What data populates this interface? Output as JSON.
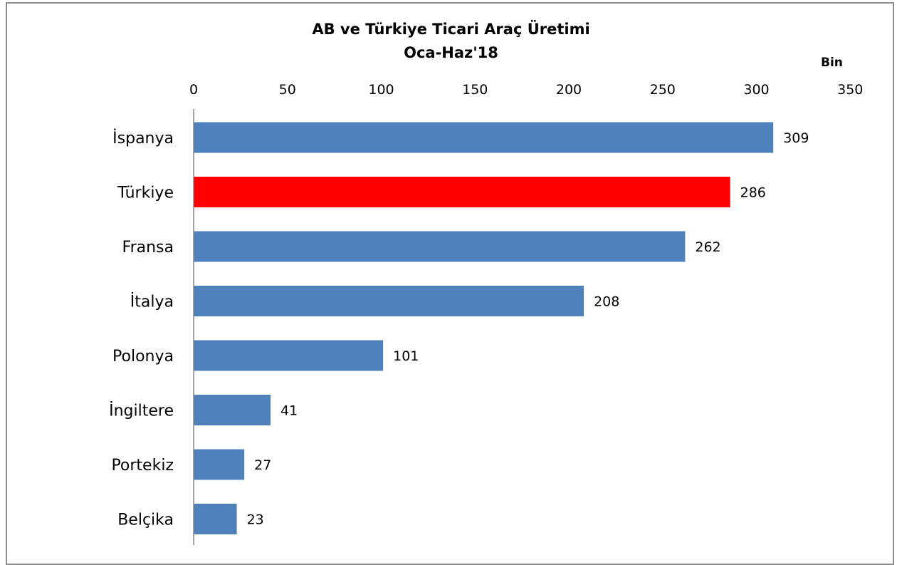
{
  "chart_data": {
    "type": "bar",
    "orientation": "horizontal",
    "title": "AB ve Türkiye Ticari Araç Üretimi",
    "subtitle": "Oca-Haz'18",
    "unit_label": "Bin",
    "categories": [
      "İspanya",
      "Türkiye",
      "Fransa",
      "İtalya",
      "Polonya",
      "İngiltere",
      "Portekiz",
      "Belçika"
    ],
    "values": [
      309,
      286,
      262,
      208,
      101,
      41,
      27,
      23
    ],
    "data_labels": [
      "309",
      "286",
      "262",
      "208",
      "101",
      "41",
      "27",
      "23"
    ],
    "x_ticks": [
      0,
      50,
      100,
      150,
      200,
      250,
      300,
      350
    ],
    "xlim": [
      0,
      350
    ],
    "axis_position": "top",
    "grid": false,
    "legend": "none",
    "colors": {
      "default_bar": "#4f81bd",
      "highlight_bar": "#ff0000",
      "highlight_category": "Türkiye"
    }
  }
}
